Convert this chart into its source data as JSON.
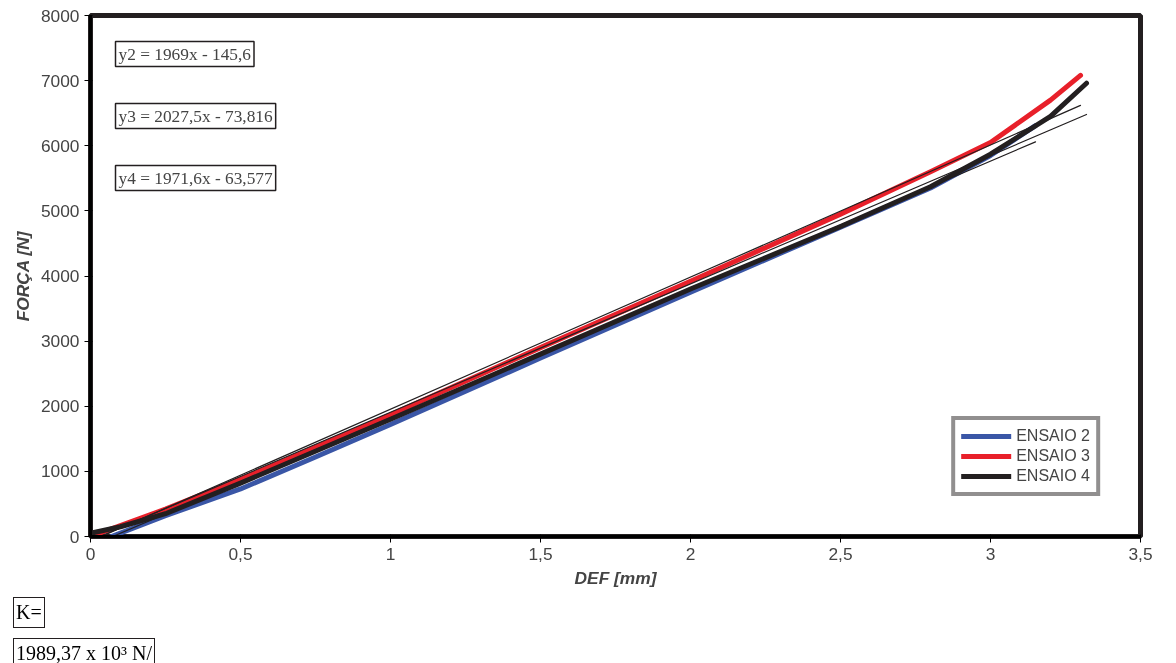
{
  "chart_data": {
    "type": "line",
    "xlabel": "DEF [mm]",
    "ylabel": "FORÇA [N]",
    "xlim": [
      0,
      3.5
    ],
    "ylim": [
      0,
      8000
    ],
    "xticks": [
      0,
      {
        "value": 0.5,
        "label": "0,5"
      },
      1,
      {
        "value": 1.5,
        "label": "1,5"
      },
      2,
      {
        "value": 2.5,
        "label": "2,5"
      },
      3,
      {
        "value": 3.5,
        "label": "3,5"
      }
    ],
    "yticks": [
      0,
      1000,
      2000,
      3000,
      4000,
      5000,
      6000,
      7000,
      8000
    ],
    "grid": false,
    "legend": "bottom right",
    "marker": "none",
    "line_style": "solid",
    "series": [
      {
        "name": "ENSAIO 2",
        "color": "#3a56a6",
        "x": [
          0.07,
          0.25,
          0.5,
          0.75,
          1,
          1.5,
          2,
          2.5,
          2.8,
          3,
          3.15
        ],
        "values": [
          0,
          320,
          730,
          1220,
          1720,
          2740,
          3750,
          4750,
          5350,
          5850,
          6310
        ]
      },
      {
        "name": "ENSAIO 3",
        "color": "#e8202a",
        "x": [
          0,
          0.25,
          0.5,
          1,
          1.5,
          2,
          2.5,
          2.8,
          3,
          3.2,
          3.3
        ],
        "values": [
          0,
          420,
          880,
          1870,
          2900,
          3920,
          4950,
          5600,
          6050,
          6700,
          7080
        ]
      },
      {
        "name": "ENSAIO 4",
        "color": "#231f20",
        "x": [
          0,
          0.1,
          0.25,
          0.5,
          1,
          1.5,
          2,
          2.5,
          2.8,
          3,
          3.2,
          3.32
        ],
        "values": [
          50,
          150,
          350,
          820,
          1800,
          2800,
          3800,
          4760,
          5370,
          5870,
          6450,
          6960
        ]
      },
      {
        "type": "line",
        "color": "#231f20",
        "x": [
          0.074,
          3.15
        ],
        "values": [
          0,
          6060
        ]
      },
      {
        "type": "line",
        "color": "#231f20",
        "x": [
          0.036,
          3.3
        ],
        "values": [
          0,
          6620
        ]
      },
      {
        "type": "line",
        "color": "#231f20",
        "x": [
          0.032,
          3.32
        ],
        "values": [
          0,
          6480
        ]
      }
    ],
    "annotations": [
      "y2 = 1969x - 145,6",
      "y3 = 2027,5x - 73,816",
      "y4 = 1971,6x - 63,577",
      "K=",
      "1989,37 x 10³ N/"
    ]
  }
}
